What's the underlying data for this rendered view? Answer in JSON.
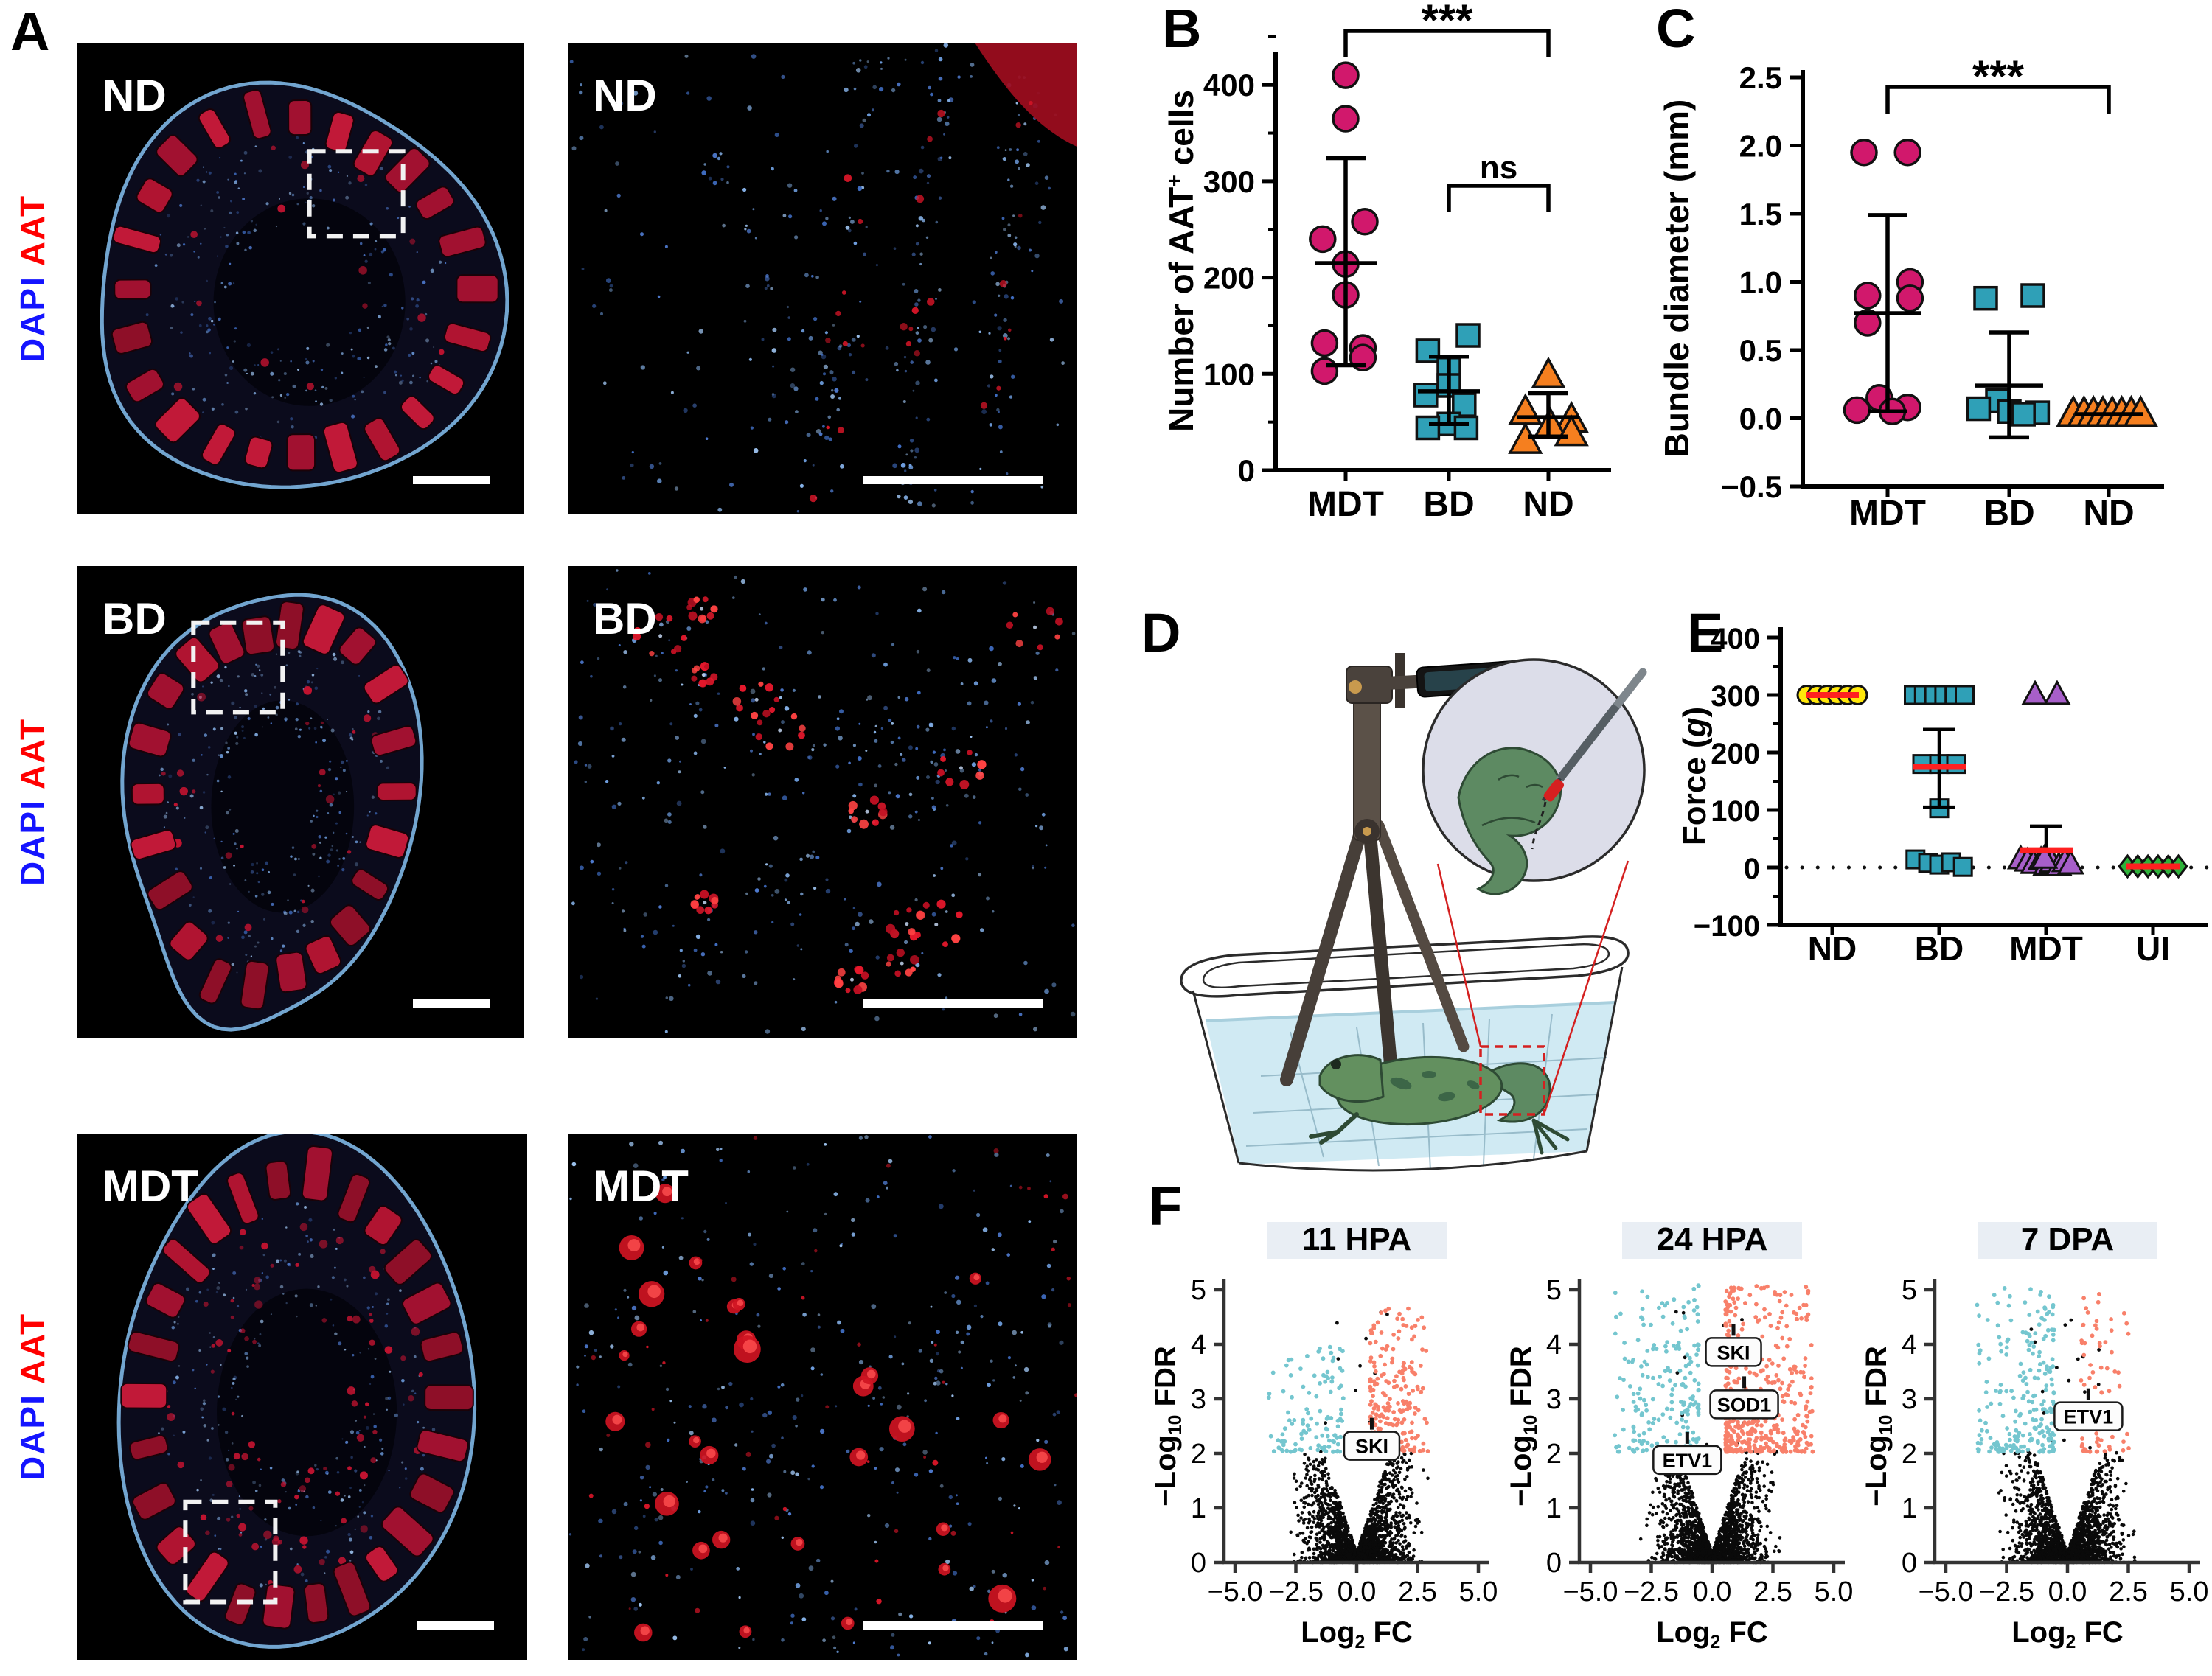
{
  "figure": {
    "panel_letters": {
      "a": "A",
      "b": "B",
      "c": "C",
      "d": "D",
      "e": "E",
      "f": "F"
    }
  },
  "panel_a": {
    "stain": {
      "dapi": "DAPI",
      "aat": "AAT"
    },
    "rows": [
      {
        "label": "ND"
      },
      {
        "label": "BD"
      },
      {
        "label": "MDT"
      }
    ]
  },
  "chart_data": [
    {
      "id": "B",
      "type": "dot-scatter",
      "ylabel_parts": [
        {
          "text": "Number of AAT"
        },
        {
          "text": "+",
          "sup": true
        },
        {
          "text": " cells"
        }
      ],
      "ylim": [
        0,
        455
      ],
      "yticks": [
        0,
        100,
        200,
        300,
        400
      ],
      "categories": [
        "MDT",
        "BD",
        "ND"
      ],
      "series": [
        {
          "name": "MDT",
          "marker": "circle",
          "color": "#d1186c",
          "values": [
            410,
            365,
            258,
            240,
            214,
            182,
            132,
            127,
            117,
            103
          ],
          "jitter": [
            0,
            0,
            0.2,
            -0.24,
            0,
            0,
            -0.22,
            0.18,
            0.18,
            -0.22
          ],
          "mean": 215,
          "err_low": 109,
          "err_high": 324
        },
        {
          "name": "BD",
          "marker": "square",
          "color": "#2fa0b7",
          "values": [
            140,
            124,
            105,
            88,
            78,
            68,
            48,
            44,
            44
          ],
          "jitter": [
            0.2,
            -0.22,
            0,
            0,
            -0.24,
            0.16,
            0,
            -0.22,
            0.18
          ],
          "mean": 82,
          "err_low": 48,
          "err_high": 118
        },
        {
          "name": "ND",
          "marker": "triangle",
          "color": "#f57f1f",
          "values": [
            98,
            60,
            52,
            46,
            38,
            30
          ],
          "jitter": [
            0,
            -0.24,
            0.24,
            0.02,
            0.24,
            -0.24
          ],
          "mean": 55,
          "err_low": 35,
          "err_high": 80
        }
      ],
      "significance": [
        {
          "from": 0,
          "to": 2,
          "label": "***"
        },
        {
          "from": 1,
          "to": 2,
          "label": "ns"
        }
      ]
    },
    {
      "id": "C",
      "type": "dot-scatter",
      "ylabel_parts": [
        {
          "text": "Bundle diameter (mm)"
        }
      ],
      "ylim": [
        -0.5,
        2.5
      ],
      "yticks": [
        -0.5,
        0,
        0.5,
        1,
        1.5,
        2,
        2.5
      ],
      "decimals": 1,
      "categories": [
        "MDT",
        "BD",
        "ND"
      ],
      "series": [
        {
          "name": "MDT",
          "marker": "circle",
          "color": "#d1186c",
          "values": [
            1.95,
            1.95,
            1,
            0.9,
            0.88,
            0.7,
            0.15,
            0.08,
            0.06,
            0.05
          ],
          "jitter": [
            -0.2,
            0.17,
            0.19,
            -0.17,
            0.19,
            -0.17,
            -0.07,
            0.17,
            -0.26,
            0.04
          ],
          "mean": 0.77,
          "err_low": 0.05,
          "err_high": 1.49
        },
        {
          "name": "BD",
          "marker": "square",
          "color": "#2fa0b7",
          "values": [
            0.9,
            0.88,
            0.13,
            0.07,
            0.05,
            0.04,
            0.03
          ],
          "jitter": [
            0.2,
            -0.2,
            -0.1,
            -0.26,
            0,
            0.24,
            0.12
          ],
          "mean": 0.24,
          "err_low": -0.14,
          "err_high": 0.63
        },
        {
          "name": "ND",
          "marker": "triangle",
          "color": "#f57f1f",
          "values": [
            0.03,
            0.03,
            0.03,
            0.03,
            0.03,
            0.03,
            0.03,
            0.03
          ],
          "jitter": [
            -0.3,
            -0.21,
            -0.13,
            -0.05,
            0.03,
            0.11,
            0.19,
            0.27
          ],
          "mean": 0.03
        }
      ],
      "significance": [
        {
          "from": 0,
          "to": 2,
          "label": "***"
        }
      ]
    },
    {
      "id": "E",
      "type": "dot-scatter",
      "ylabel_parts": [
        {
          "text": "Force ("
        },
        {
          "text": "g",
          "italic": true
        },
        {
          "text": ")"
        }
      ],
      "ylim": [
        -100,
        400
      ],
      "yticks": [
        -100,
        0,
        100,
        200,
        300,
        400
      ],
      "categories": [
        "ND",
        "BD",
        "MDT",
        "UI"
      ],
      "dotted_baseline": 0,
      "median_color": "#ff2020",
      "series": [
        {
          "name": "ND",
          "marker": "circle",
          "color": "#ffe70a",
          "values": [
            300,
            300,
            300,
            300,
            300,
            300
          ],
          "jitter": [
            -0.3,
            -0.18,
            -0.06,
            0.06,
            0.18,
            0.3
          ],
          "median": 300
        },
        {
          "name": "BD",
          "marker": "square",
          "color": "#2fa0b7",
          "values": [
            300,
            300,
            300,
            300,
            300,
            300,
            180,
            180,
            180,
            103,
            14,
            8,
            5,
            9,
            1
          ],
          "jitter": [
            -0.3,
            -0.18,
            -0.06,
            0.06,
            0.18,
            0.3,
            -0.2,
            0,
            0.2,
            0,
            -0.28,
            -0.13,
            0,
            0.14,
            0.28
          ],
          "median": 175,
          "err_low": 105,
          "err_high": 240
        },
        {
          "name": "MDT",
          "marker": "triangle",
          "color": "#a75fc9",
          "values": [
            300,
            300,
            14,
            10,
            6,
            12,
            3,
            8,
            2,
            9,
            5,
            15
          ],
          "jitter": [
            -0.13,
            0.13,
            -0.3,
            -0.22,
            -0.15,
            -0.06,
            0,
            0.07,
            0.15,
            0.22,
            0.29,
            -0.02
          ],
          "median": 30,
          "err_high": 72
        },
        {
          "name": "UI",
          "marker": "diamond",
          "color": "#2eb23a",
          "values": [
            2,
            2,
            2,
            2,
            2,
            2
          ],
          "jitter": [
            -0.3,
            -0.18,
            -0.06,
            0.06,
            0.18,
            0.3
          ],
          "median": 2
        }
      ]
    },
    {
      "id": "F",
      "type": "volcano",
      "point_colors": {
        "up": "#f8806a",
        "down": "#74c6cf",
        "ns": "#0a0a0a"
      },
      "xlabel_parts": [
        {
          "text": "Log"
        },
        {
          "text": "2",
          "sub": true
        },
        {
          "text": " FC"
        }
      ],
      "ylabel_parts": [
        {
          "text": "−Log"
        },
        {
          "text": "10",
          "sub": true
        },
        {
          "text": " FDR"
        }
      ],
      "xlim": [
        -5.5,
        5.5
      ],
      "ylim": [
        0,
        5.4
      ],
      "xticks": [
        -5,
        -2.5,
        0,
        2.5,
        5
      ],
      "yticks": [
        0,
        1,
        2,
        3,
        4,
        5
      ],
      "fdr_threshold": 2,
      "plots": [
        {
          "title": "11 HPA",
          "seed": 11,
          "n_black": 2000,
          "n_stray": 10,
          "n_up": 230,
          "up_spread": 2.4,
          "up_max": 4.65,
          "n_down": 110,
          "down_spread": 3.1,
          "down_max": 3.95,
          "gene_labels": [
            {
              "text": "SKI",
              "x": 0.62,
              "y": 2.14
            }
          ]
        },
        {
          "title": "24 HPA",
          "seed": 24,
          "n_black": 2000,
          "n_stray": 12,
          "n_up": 470,
          "up_spread": 3.6,
          "up_max": 5.05,
          "n_down": 210,
          "down_spread": 3.5,
          "down_max": 5.05,
          "gene_labels": [
            {
              "text": "SKI",
              "x": 0.88,
              "y": 3.86
            },
            {
              "text": "SOD1",
              "x": 1.32,
              "y": 2.9
            },
            {
              "text": "ETV1",
              "x": -1.02,
              "y": 1.88
            }
          ]
        },
        {
          "title": "7 DPA",
          "seed": 7,
          "n_black": 2000,
          "n_stray": 16,
          "n_up": 85,
          "up_spread": 2.0,
          "up_max": 5.0,
          "n_down": 220,
          "down_spread": 3.3,
          "down_max": 5.0,
          "gene_labels": [
            {
              "text": "ETV1",
              "x": 0.86,
              "y": 2.68
            }
          ]
        }
      ]
    }
  ]
}
